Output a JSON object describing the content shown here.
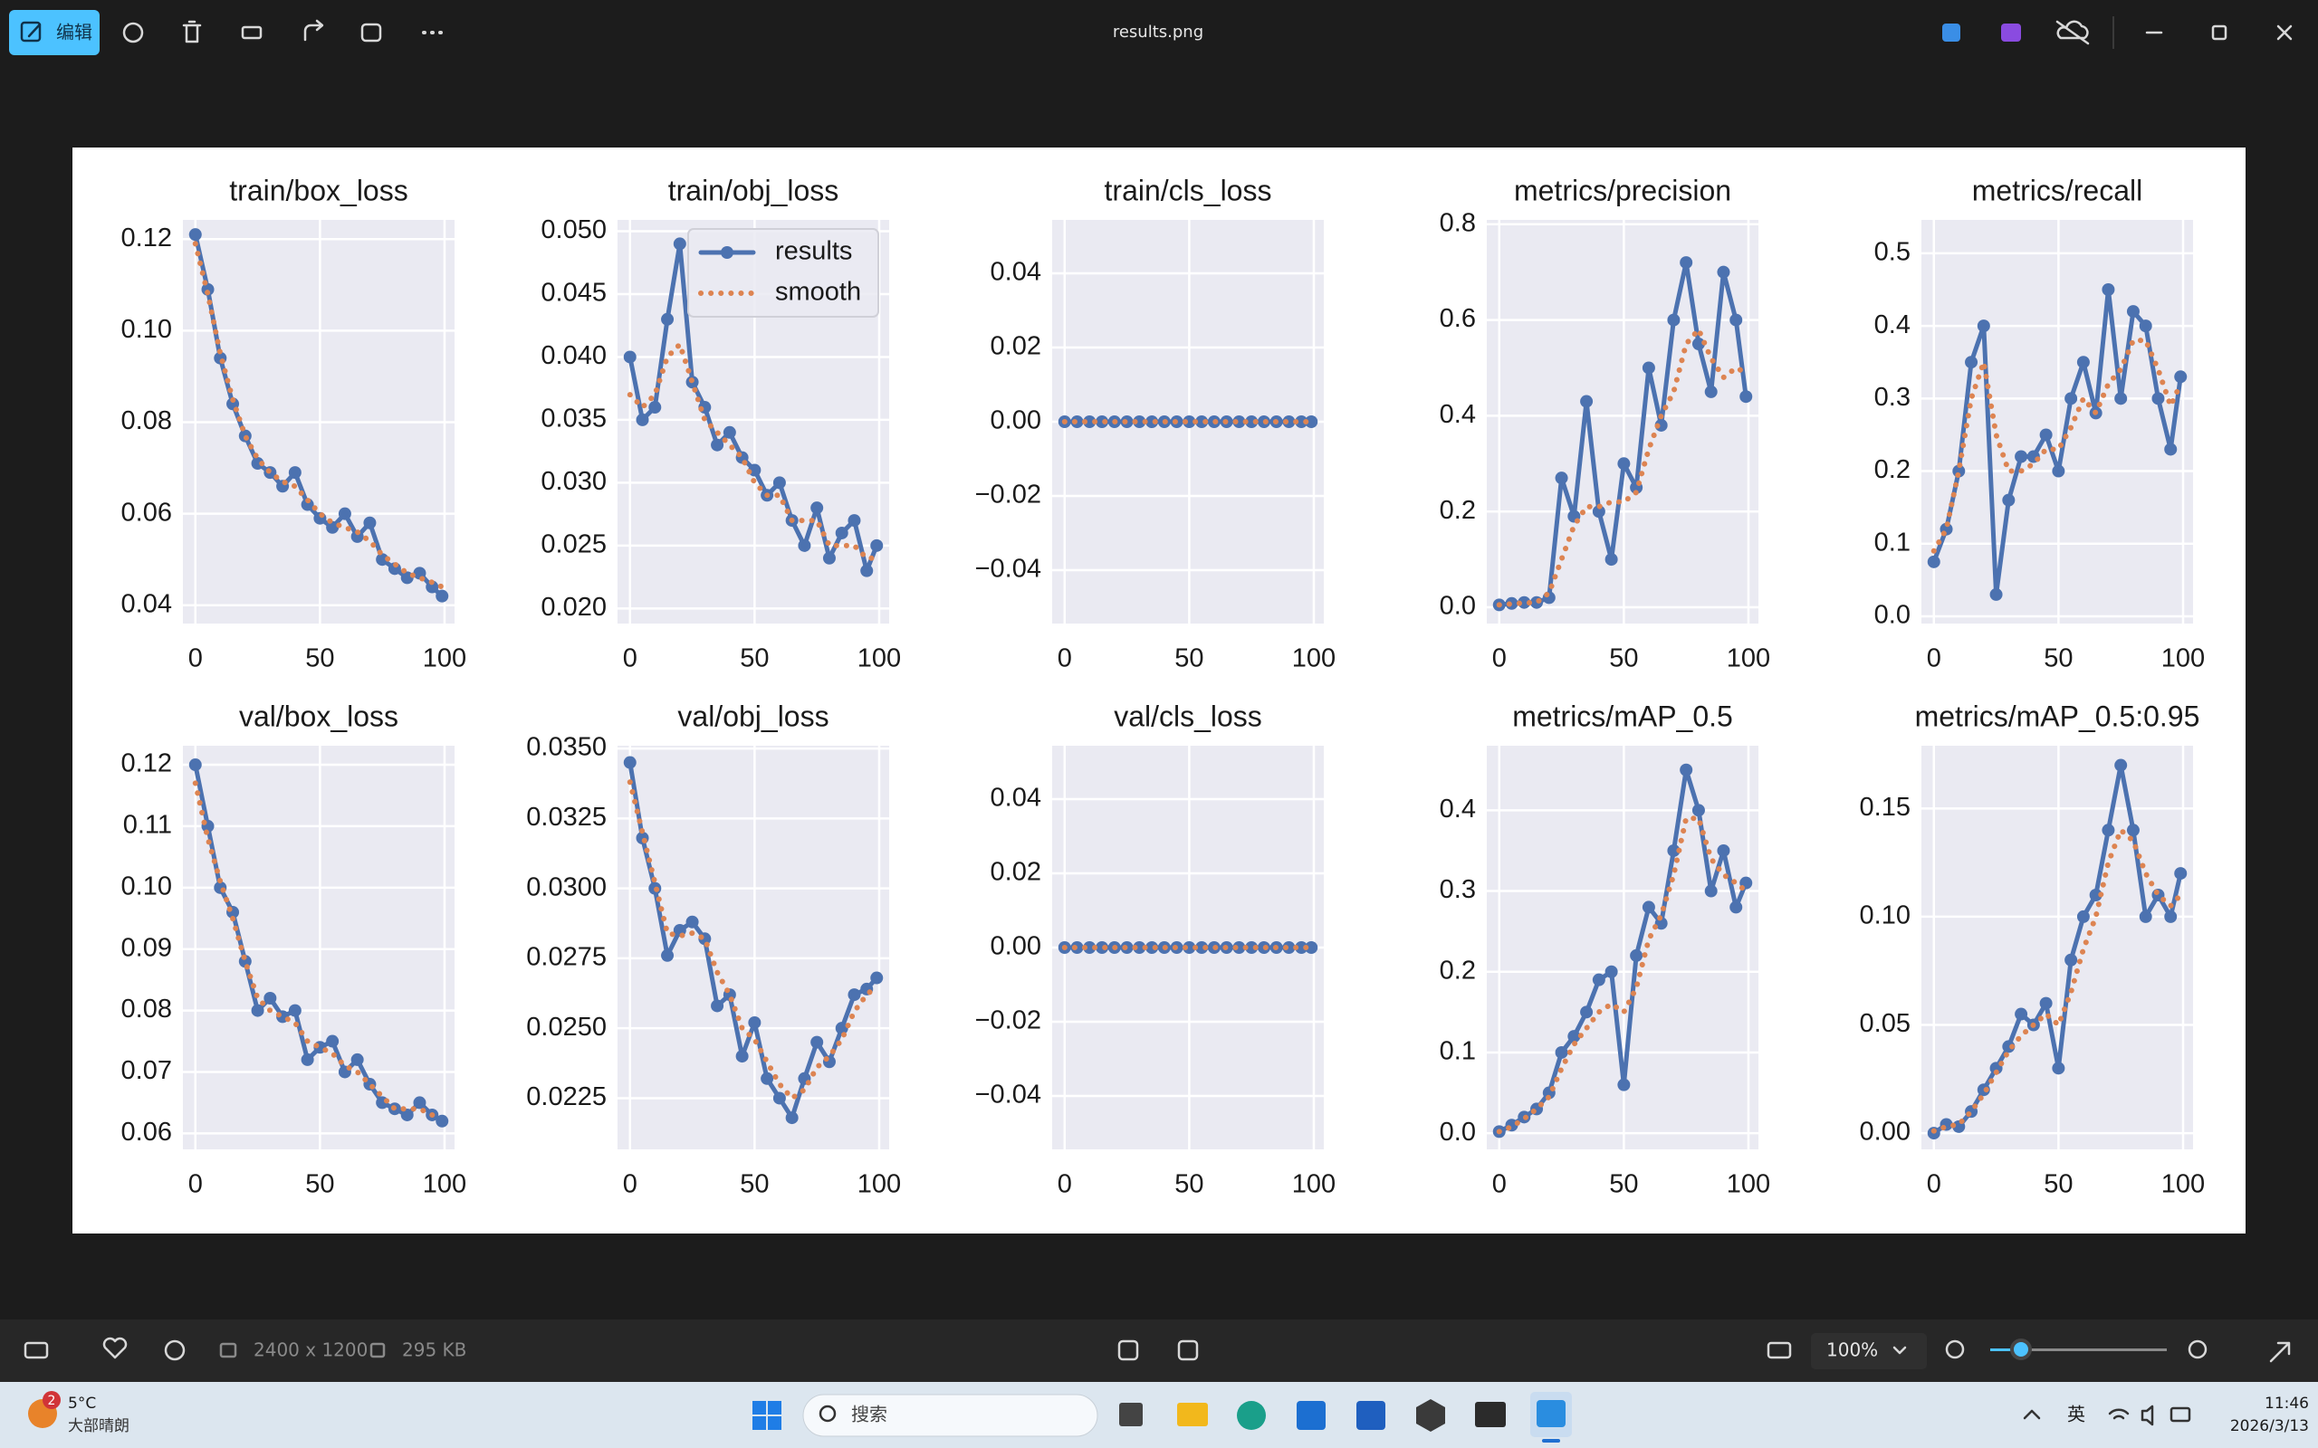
{
  "ui": {
    "edit_button": "编辑",
    "file_name": "results.png",
    "image_size": "2400 x 1200",
    "file_size": "295 KB",
    "zoom": "100%",
    "weather_badge": "2",
    "temperature": "5°C",
    "weather": "大部晴朗",
    "search": "搜索",
    "ime": "英",
    "time": "11:46",
    "date": "2026/3/13"
  },
  "chart_data": [
    {
      "type": "line",
      "title": "train/box_loss",
      "x": [
        0,
        5,
        10,
        15,
        20,
        25,
        30,
        35,
        40,
        45,
        50,
        55,
        60,
        65,
        70,
        75,
        80,
        85,
        90,
        95,
        99
      ],
      "series": [
        {
          "color": "#4c72b0",
          "values": [
            0.121,
            0.109,
            0.094,
            0.084,
            0.077,
            0.071,
            0.069,
            0.066,
            0.069,
            0.062,
            0.059,
            0.057,
            0.06,
            0.055,
            0.058,
            0.05,
            0.048,
            0.046,
            0.047,
            0.044,
            0.042
          ]
        },
        {
          "color": "#dd8452",
          "values": [
            0.119,
            0.108,
            0.095,
            0.085,
            0.077,
            0.072,
            0.069,
            0.067,
            0.066,
            0.063,
            0.06,
            0.058,
            0.057,
            0.056,
            0.054,
            0.051,
            0.049,
            0.047,
            0.046,
            0.045,
            0.044
          ]
        }
      ],
      "xlim": [
        -5,
        104
      ],
      "xticks": [
        0,
        50,
        100
      ],
      "ylim": [
        0.036,
        0.1242
      ],
      "yticks": [
        0.04,
        0.06,
        0.08,
        {
          "value": 0.1,
          "label": "0.10"
        },
        0.12
      ],
      "grid": true
    },
    {
      "type": "line",
      "title": "train/obj_loss",
      "x": [
        0,
        5,
        10,
        15,
        20,
        25,
        30,
        35,
        40,
        45,
        50,
        55,
        60,
        65,
        70,
        75,
        80,
        85,
        90,
        95,
        99
      ],
      "series": [
        {
          "name": "results",
          "color": "#4c72b0",
          "values": [
            0.04,
            0.035,
            0.036,
            0.043,
            0.049,
            0.038,
            0.036,
            0.033,
            0.034,
            0.032,
            0.031,
            0.029,
            0.03,
            0.027,
            0.025,
            0.028,
            0.024,
            0.026,
            0.027,
            0.023,
            0.025
          ]
        },
        {
          "name": "smooth",
          "color": "#dd8452",
          "values": [
            0.037,
            0.036,
            0.037,
            0.04,
            0.041,
            0.038,
            0.035,
            0.034,
            0.033,
            0.032,
            0.03,
            0.029,
            0.029,
            0.027,
            0.027,
            0.027,
            0.025,
            0.025,
            0.025,
            0.024,
            0.024
          ]
        }
      ],
      "xlim": [
        -5,
        104
      ],
      "xticks": [
        0,
        50,
        100
      ],
      "ylim": [
        0.0188,
        0.0509
      ],
      "yticks": [
        {
          "value": 0.02,
          "label": "0.020"
        },
        0.025,
        {
          "value": 0.03,
          "label": "0.030"
        },
        0.035,
        {
          "value": 0.04,
          "label": "0.040"
        },
        0.045,
        {
          "value": 0.05,
          "label": "0.050"
        }
      ],
      "grid": true,
      "legend": "upper right"
    },
    {
      "type": "line",
      "title": "train/cls_loss",
      "x": [
        0,
        5,
        10,
        15,
        20,
        25,
        30,
        35,
        40,
        45,
        50,
        55,
        60,
        65,
        70,
        75,
        80,
        85,
        90,
        95,
        99
      ],
      "series": [
        {
          "color": "#4c72b0",
          "values": [
            0,
            0,
            0,
            0,
            0,
            0,
            0,
            0,
            0,
            0,
            0,
            0,
            0,
            0,
            0,
            0,
            0,
            0,
            0,
            0,
            0
          ]
        },
        {
          "color": "#dd8452",
          "values": [
            0,
            0,
            0,
            0,
            0,
            0,
            0,
            0,
            0,
            0,
            0,
            0,
            0,
            0,
            0,
            0,
            0,
            0,
            0,
            0,
            0
          ]
        }
      ],
      "xlim": [
        -5,
        104
      ],
      "xticks": [
        0,
        50,
        100
      ],
      "ylim": [
        -0.0544,
        0.0544
      ],
      "yticks": [
        {
          "value": -0.04,
          "label": "−0.04"
        },
        {
          "value": -0.02,
          "label": "−0.02"
        },
        {
          "value": 0,
          "label": "0.00"
        },
        0.02,
        0.04
      ],
      "grid": true
    },
    {
      "type": "line",
      "title": "metrics/precision",
      "x": [
        0,
        5,
        10,
        15,
        20,
        25,
        30,
        35,
        40,
        45,
        50,
        55,
        60,
        65,
        70,
        75,
        80,
        85,
        90,
        95,
        99
      ],
      "series": [
        {
          "color": "#4c72b0",
          "values": [
            0.005,
            0.008,
            0.01,
            0.01,
            0.02,
            0.27,
            0.19,
            0.43,
            0.2,
            0.1,
            0.3,
            0.25,
            0.5,
            0.38,
            0.6,
            0.72,
            0.55,
            0.45,
            0.7,
            0.6,
            0.44
          ]
        },
        {
          "color": "#dd8452",
          "values": [
            0.005,
            0.007,
            0.009,
            0.01,
            0.03,
            0.1,
            0.17,
            0.21,
            0.21,
            0.22,
            0.22,
            0.24,
            0.33,
            0.4,
            0.45,
            0.55,
            0.58,
            0.52,
            0.48,
            0.5,
            0.49
          ]
        }
      ],
      "xlim": [
        -5,
        104
      ],
      "xticks": [
        0,
        50,
        100
      ],
      "ylim": [
        -0.034,
        0.809
      ],
      "yticks": [
        {
          "value": 0,
          "label": "0.0"
        },
        0.2,
        0.4,
        0.6,
        0.8
      ],
      "grid": true
    },
    {
      "type": "line",
      "title": "metrics/recall",
      "x": [
        0,
        5,
        10,
        15,
        20,
        25,
        30,
        35,
        40,
        45,
        50,
        55,
        60,
        65,
        70,
        75,
        80,
        85,
        90,
        95,
        99
      ],
      "series": [
        {
          "color": "#4c72b0",
          "values": [
            0.075,
            0.12,
            0.2,
            0.35,
            0.4,
            0.03,
            0.16,
            0.22,
            0.22,
            0.25,
            0.2,
            0.3,
            0.35,
            0.28,
            0.45,
            0.3,
            0.42,
            0.4,
            0.3,
            0.23,
            0.33
          ]
        },
        {
          "color": "#dd8452",
          "values": [
            0.09,
            0.12,
            0.2,
            0.3,
            0.35,
            0.25,
            0.2,
            0.2,
            0.21,
            0.23,
            0.23,
            0.26,
            0.3,
            0.28,
            0.32,
            0.34,
            0.38,
            0.38,
            0.34,
            0.29,
            0.32
          ]
        }
      ],
      "xlim": [
        -5,
        104
      ],
      "xticks": [
        0,
        50,
        100
      ],
      "ylim": [
        -0.01,
        0.546
      ],
      "yticks": [
        {
          "value": 0,
          "label": "0.0"
        },
        0.1,
        0.2,
        0.3,
        0.4,
        0.5
      ],
      "grid": true
    },
    {
      "type": "line",
      "title": "val/box_loss",
      "x": [
        0,
        5,
        10,
        15,
        20,
        25,
        30,
        35,
        40,
        45,
        50,
        55,
        60,
        65,
        70,
        75,
        80,
        85,
        90,
        95,
        99
      ],
      "series": [
        {
          "color": "#4c72b0",
          "values": [
            0.12,
            0.11,
            0.1,
            0.096,
            0.088,
            0.08,
            0.082,
            0.079,
            0.08,
            0.072,
            0.074,
            0.075,
            0.07,
            0.072,
            0.068,
            0.065,
            0.064,
            0.063,
            0.065,
            0.063,
            0.062
          ]
        },
        {
          "color": "#dd8452",
          "values": [
            0.117,
            0.108,
            0.101,
            0.095,
            0.088,
            0.082,
            0.08,
            0.079,
            0.078,
            0.075,
            0.074,
            0.073,
            0.071,
            0.07,
            0.068,
            0.066,
            0.064,
            0.064,
            0.064,
            0.063,
            0.063
          ]
        }
      ],
      "xlim": [
        -5,
        104
      ],
      "xticks": [
        0,
        50,
        100
      ],
      "ylim": [
        0.0574,
        0.1231
      ],
      "yticks": [
        0.06,
        0.07,
        0.08,
        0.09,
        {
          "value": 0.1,
          "label": "0.10"
        },
        0.11,
        0.12
      ],
      "grid": true
    },
    {
      "type": "line",
      "title": "val/obj_loss",
      "x": [
        0,
        5,
        10,
        15,
        20,
        25,
        30,
        35,
        40,
        45,
        50,
        55,
        60,
        65,
        70,
        75,
        80,
        85,
        90,
        95,
        99
      ],
      "series": [
        {
          "color": "#4c72b0",
          "values": [
            0.0345,
            0.0318,
            0.03,
            0.0276,
            0.0285,
            0.0288,
            0.0282,
            0.0258,
            0.0262,
            0.024,
            0.0252,
            0.0232,
            0.0225,
            0.0218,
            0.0232,
            0.0245,
            0.0238,
            0.025,
            0.0262,
            0.0264,
            0.0268
          ]
        },
        {
          "color": "#dd8452",
          "values": [
            0.0338,
            0.032,
            0.0302,
            0.0284,
            0.0283,
            0.0284,
            0.0282,
            0.027,
            0.0262,
            0.025,
            0.0246,
            0.0238,
            0.023,
            0.0225,
            0.0228,
            0.0236,
            0.024,
            0.0246,
            0.0256,
            0.0262,
            0.0265
          ]
        }
      ],
      "xlim": [
        -5,
        104
      ],
      "xticks": [
        0,
        50,
        100
      ],
      "ylim": [
        0.02067,
        0.0351
      ],
      "yticks": [
        0.0225,
        {
          "value": 0.025,
          "label": "0.0250"
        },
        0.0275,
        {
          "value": 0.03,
          "label": "0.0300"
        },
        0.0325,
        {
          "value": 0.035,
          "label": "0.0350"
        }
      ],
      "grid": true
    },
    {
      "type": "line",
      "title": "val/cls_loss",
      "x": [
        0,
        5,
        10,
        15,
        20,
        25,
        30,
        35,
        40,
        45,
        50,
        55,
        60,
        65,
        70,
        75,
        80,
        85,
        90,
        95,
        99
      ],
      "series": [
        {
          "color": "#4c72b0",
          "values": [
            0,
            0,
            0,
            0,
            0,
            0,
            0,
            0,
            0,
            0,
            0,
            0,
            0,
            0,
            0,
            0,
            0,
            0,
            0,
            0,
            0
          ]
        },
        {
          "color": "#dd8452",
          "values": [
            0,
            0,
            0,
            0,
            0,
            0,
            0,
            0,
            0,
            0,
            0,
            0,
            0,
            0,
            0,
            0,
            0,
            0,
            0,
            0,
            0
          ]
        }
      ],
      "xlim": [
        -5,
        104
      ],
      "xticks": [
        0,
        50,
        100
      ],
      "ylim": [
        -0.0544,
        0.0544
      ],
      "yticks": [
        {
          "value": -0.04,
          "label": "−0.04"
        },
        {
          "value": -0.02,
          "label": "−0.02"
        },
        {
          "value": 0,
          "label": "0.00"
        },
        0.02,
        0.04
      ],
      "grid": true
    },
    {
      "type": "line",
      "title": "metrics/mAP_0.5",
      "x": [
        0,
        5,
        10,
        15,
        20,
        25,
        30,
        35,
        40,
        45,
        50,
        55,
        60,
        65,
        70,
        75,
        80,
        85,
        90,
        95,
        99
      ],
      "series": [
        {
          "color": "#4c72b0",
          "values": [
            0.002,
            0.01,
            0.02,
            0.03,
            0.05,
            0.1,
            0.12,
            0.15,
            0.19,
            0.2,
            0.06,
            0.22,
            0.28,
            0.26,
            0.35,
            0.45,
            0.4,
            0.3,
            0.35,
            0.28,
            0.31
          ]
        },
        {
          "color": "#dd8452",
          "values": [
            0.002,
            0.008,
            0.018,
            0.03,
            0.045,
            0.08,
            0.11,
            0.13,
            0.15,
            0.16,
            0.15,
            0.18,
            0.24,
            0.27,
            0.32,
            0.39,
            0.39,
            0.34,
            0.32,
            0.31,
            0.3
          ]
        }
      ],
      "xlim": [
        -5,
        104
      ],
      "xticks": [
        0,
        50,
        100
      ],
      "ylim": [
        -0.02,
        0.48
      ],
      "yticks": [
        {
          "value": 0,
          "label": "0.0"
        },
        0.1,
        0.2,
        0.3,
        0.4
      ],
      "grid": true
    },
    {
      "type": "line",
      "title": "metrics/mAP_0.5:0.95",
      "x": [
        0,
        5,
        10,
        15,
        20,
        25,
        30,
        35,
        40,
        45,
        50,
        55,
        60,
        65,
        70,
        75,
        80,
        85,
        90,
        95,
        99
      ],
      "series": [
        {
          "color": "#4c72b0",
          "values": [
            0,
            0.004,
            0.003,
            0.01,
            0.02,
            0.03,
            0.04,
            0.055,
            0.05,
            0.06,
            0.03,
            0.08,
            0.1,
            0.11,
            0.14,
            0.17,
            0.14,
            0.1,
            0.11,
            0.1,
            0.12
          ]
        },
        {
          "color": "#dd8452",
          "values": [
            0.001,
            0.003,
            0.004,
            0.01,
            0.018,
            0.028,
            0.038,
            0.045,
            0.05,
            0.055,
            0.05,
            0.065,
            0.085,
            0.1,
            0.125,
            0.14,
            0.135,
            0.12,
            0.11,
            0.105,
            0.11
          ]
        }
      ],
      "xlim": [
        -5,
        104
      ],
      "xticks": [
        0,
        50,
        100
      ],
      "ylim": [
        -0.0075,
        0.179
      ],
      "yticks": [
        {
          "value": 0,
          "label": "0.00"
        },
        0.05,
        {
          "value": 0.1,
          "label": "0.10"
        },
        0.15
      ],
      "grid": true
    }
  ]
}
